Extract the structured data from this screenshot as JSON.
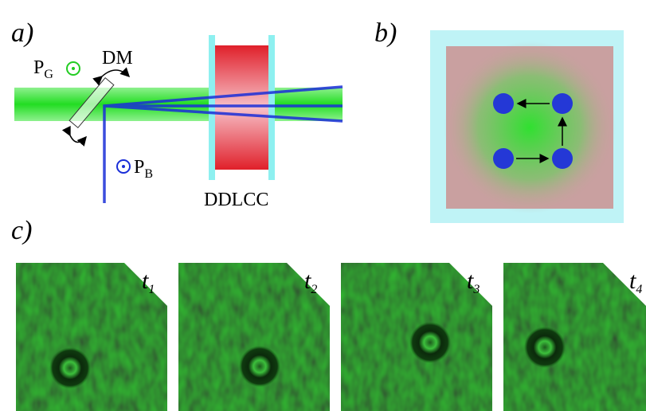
{
  "panel_a": {
    "label": "a)",
    "pg": {
      "symbol": "P",
      "subscript": "G"
    },
    "dm": "DM",
    "pb": {
      "symbol": "P",
      "subscript": "B"
    },
    "cell": "DDLCC"
  },
  "panel_b": {
    "label": "b)"
  },
  "panel_c": {
    "label": "c)",
    "frames": [
      {
        "symbol": "t",
        "subscript": "1"
      },
      {
        "symbol": "t",
        "subscript": "2"
      },
      {
        "symbol": "t",
        "subscript": "3"
      },
      {
        "symbol": "t",
        "subscript": "4"
      }
    ]
  }
}
